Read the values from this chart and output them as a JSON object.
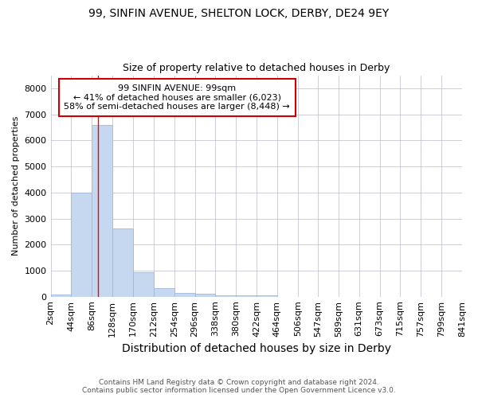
{
  "title1": "99, SINFIN AVENUE, SHELTON LOCK, DERBY, DE24 9EY",
  "title2": "Size of property relative to detached houses in Derby",
  "xlabel": "Distribution of detached houses by size in Derby",
  "ylabel": "Number of detached properties",
  "footer1": "Contains HM Land Registry data © Crown copyright and database right 2024.",
  "footer2": "Contains public sector information licensed under the Open Government Licence v3.0.",
  "annotation_line1": "99 SINFIN AVENUE: 99sqm",
  "annotation_line2": "← 41% of detached houses are smaller (6,023)",
  "annotation_line3": "58% of semi-detached houses are larger (8,448) →",
  "bar_edges": [
    2,
    44,
    86,
    128,
    170,
    212,
    254,
    296,
    338,
    380,
    422,
    464,
    506,
    547,
    589,
    631,
    673,
    715,
    757,
    799,
    841
  ],
  "bar_heights": [
    75,
    4000,
    6600,
    2625,
    950,
    325,
    140,
    110,
    50,
    50,
    50,
    0,
    0,
    0,
    0,
    0,
    0,
    0,
    0,
    0
  ],
  "bar_color": "#C5D8F0",
  "bar_edge_color": "#A0B8D8",
  "grid_color": "#BBBBCC",
  "red_line_x": 99,
  "annotation_box_facecolor": "#FFFFFF",
  "annotation_box_edgecolor": "#CC0000",
  "ylim": [
    0,
    8500
  ],
  "yticks": [
    0,
    1000,
    2000,
    3000,
    4000,
    5000,
    6000,
    7000,
    8000
  ],
  "bg_color": "#FFFFFF",
  "title1_fontsize": 10,
  "title2_fontsize": 9,
  "ylabel_fontsize": 8,
  "xlabel_fontsize": 10,
  "footer_fontsize": 6.5,
  "tick_fontsize": 8,
  "annot_fontsize": 8
}
